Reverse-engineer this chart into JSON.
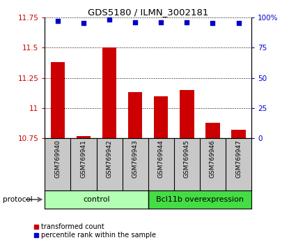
{
  "title": "GDS5180 / ILMN_3002181",
  "samples": [
    "GSM769940",
    "GSM769941",
    "GSM769942",
    "GSM769943",
    "GSM769944",
    "GSM769945",
    "GSM769946",
    "GSM769947"
  ],
  "bar_values": [
    11.38,
    10.77,
    11.5,
    11.13,
    11.1,
    11.15,
    10.88,
    10.82
  ],
  "percentile_values": [
    97,
    95,
    98,
    96,
    96,
    96,
    95,
    95
  ],
  "ylim_left": [
    10.75,
    11.75
  ],
  "ylim_right": [
    0,
    100
  ],
  "yticks_left": [
    10.75,
    11.0,
    11.25,
    11.5,
    11.75
  ],
  "ytick_labels_left": [
    "10.75",
    "11",
    "11.25",
    "11.5",
    "11.75"
  ],
  "yticks_right": [
    0,
    25,
    50,
    75,
    100
  ],
  "ytick_labels_right": [
    "0",
    "25",
    "50",
    "75",
    "100%"
  ],
  "bar_color": "#cc0000",
  "dot_color": "#0000cc",
  "bar_bottom": 10.75,
  "control_samples": 4,
  "group_labels": [
    "control",
    "Bcl11b overexpression"
  ],
  "group_colors_light": "#b3ffb3",
  "group_colors_dark": "#44dd44",
  "protocol_label": "protocol",
  "legend_bar_label": "transformed count",
  "legend_dot_label": "percentile rank within the sample",
  "sample_label_bg": "#c8c8c8",
  "figsize": [
    4.15,
    3.54
  ],
  "dpi": 100
}
